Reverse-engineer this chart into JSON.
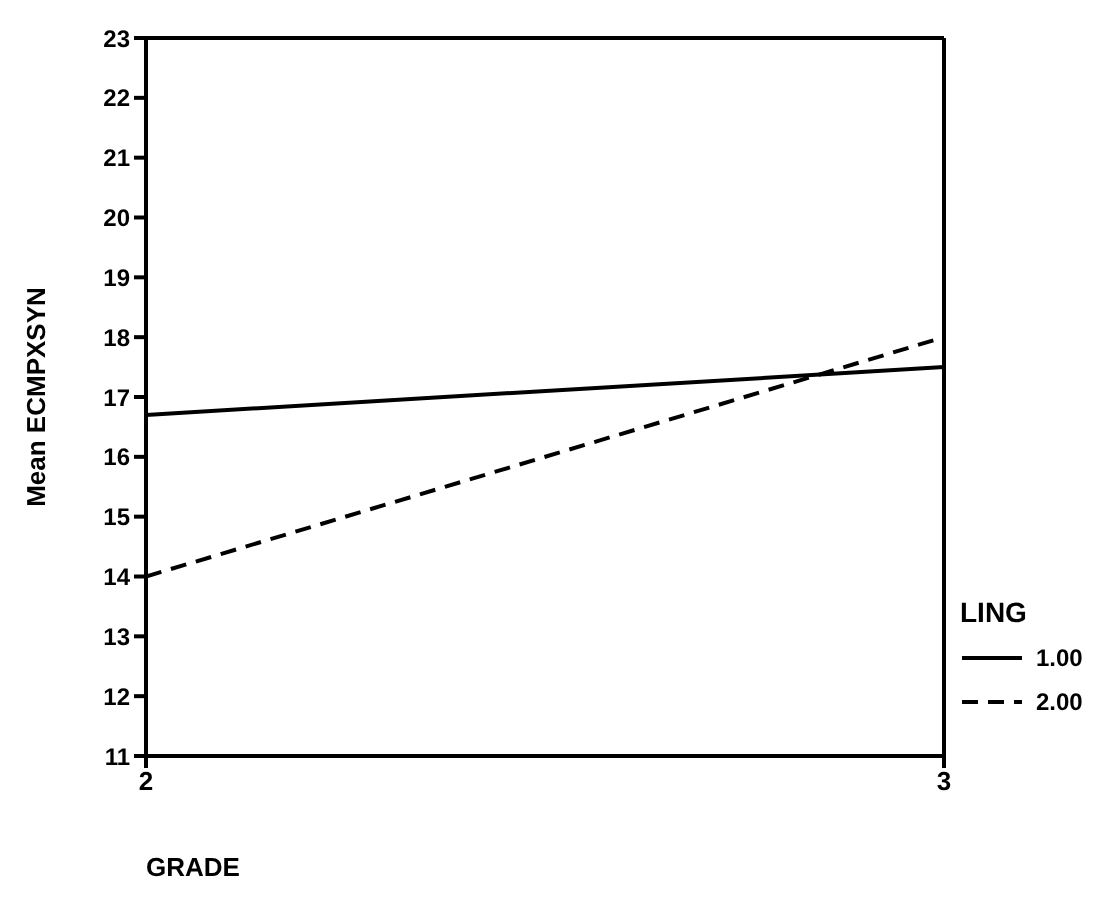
{
  "chart_data": {
    "type": "line",
    "xlabel": "GRADE",
    "ylabel": "Mean ECMPXSYN",
    "legend_title": "LING",
    "x": [
      2,
      3
    ],
    "xlim": [
      2,
      3
    ],
    "xticks": [
      2,
      3
    ],
    "ylim": [
      11,
      23
    ],
    "yticks": [
      11,
      12,
      13,
      14,
      15,
      16,
      17,
      18,
      19,
      20,
      21,
      22,
      23
    ],
    "grid": false,
    "legend": "right",
    "marker": "none",
    "series": [
      {
        "name": "1.00",
        "color": "#000000",
        "values": [
          16.7,
          17.5
        ],
        "line_style": "solid"
      },
      {
        "name": "2.00",
        "color": "#000000",
        "values": [
          14.0,
          18.0
        ],
        "line_style": "dashed"
      }
    ]
  }
}
